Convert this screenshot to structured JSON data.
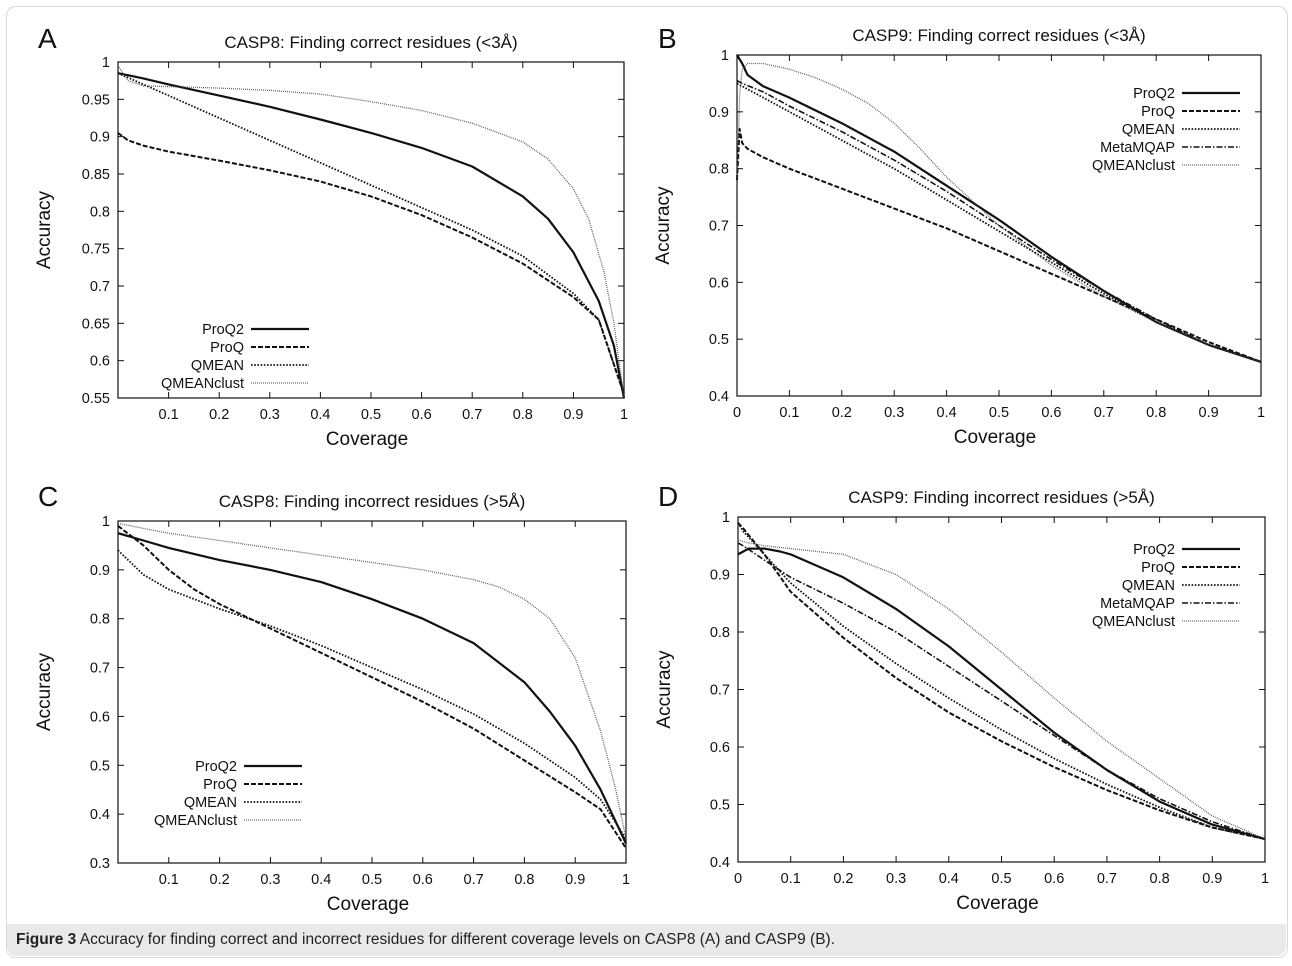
{
  "caption": {
    "label": "Figure 3",
    "text": "Accuracy for finding correct and incorrect residues for different coverage levels on CASP8 (A) and CASP9 (B)."
  },
  "chart_data": [
    {
      "panel": "A",
      "type": "line",
      "title": "CASP8: Finding correct residues (<3Å)",
      "xlabel": "Coverage",
      "ylabel": "Accuracy",
      "xlim": [
        0,
        1
      ],
      "ylim": [
        0.55,
        1
      ],
      "xticks": [
        "0.1",
        "0.2",
        "0.3",
        "0.4",
        "0.5",
        "0.6",
        "0.7",
        "0.8",
        "0.9",
        "1"
      ],
      "yticks": [
        "0.55",
        "0.6",
        "0.65",
        "0.7",
        "0.75",
        "0.8",
        "0.85",
        "0.9",
        "0.95",
        "1"
      ],
      "legend_position": "bottom-left",
      "series": [
        {
          "name": "ProQ2",
          "style": "solid",
          "x": [
            0,
            0.05,
            0.1,
            0.2,
            0.3,
            0.4,
            0.5,
            0.6,
            0.7,
            0.8,
            0.85,
            0.9,
            0.95,
            0.98,
            1
          ],
          "y": [
            0.985,
            0.978,
            0.97,
            0.955,
            0.94,
            0.923,
            0.905,
            0.885,
            0.86,
            0.82,
            0.79,
            0.745,
            0.68,
            0.62,
            0.55
          ]
        },
        {
          "name": "ProQ",
          "style": "dashed",
          "x": [
            0,
            0.02,
            0.05,
            0.1,
            0.2,
            0.3,
            0.4,
            0.5,
            0.6,
            0.7,
            0.8,
            0.9,
            0.95,
            1
          ],
          "y": [
            0.905,
            0.895,
            0.888,
            0.88,
            0.868,
            0.855,
            0.84,
            0.82,
            0.795,
            0.765,
            0.73,
            0.685,
            0.655,
            0.555
          ]
        },
        {
          "name": "QMEAN",
          "style": "dotted",
          "x": [
            0,
            0.05,
            0.1,
            0.2,
            0.3,
            0.4,
            0.5,
            0.6,
            0.7,
            0.8,
            0.9,
            0.95,
            1
          ],
          "y": [
            0.985,
            0.97,
            0.955,
            0.925,
            0.895,
            0.865,
            0.835,
            0.805,
            0.775,
            0.74,
            0.69,
            0.655,
            0.555
          ]
        },
        {
          "name": "QMEANclust",
          "style": "fine-dotted",
          "x": [
            0,
            0.02,
            0.05,
            0.1,
            0.2,
            0.3,
            0.4,
            0.5,
            0.6,
            0.7,
            0.8,
            0.85,
            0.9,
            0.93,
            0.96,
            0.98,
            1
          ],
          "y": [
            0.995,
            0.975,
            0.968,
            0.967,
            0.965,
            0.962,
            0.957,
            0.947,
            0.935,
            0.918,
            0.893,
            0.87,
            0.83,
            0.79,
            0.72,
            0.65,
            0.55
          ]
        }
      ]
    },
    {
      "panel": "B",
      "type": "line",
      "title": "CASP9: Finding correct residues (<3Å)",
      "xlabel": "Coverage",
      "ylabel": "Accuracy",
      "xlim": [
        0,
        1
      ],
      "ylim": [
        0.4,
        1
      ],
      "xticks": [
        "0",
        "0.1",
        "0.2",
        "0.3",
        "0.4",
        "0.5",
        "0.6",
        "0.7",
        "0.8",
        "0.9",
        "1"
      ],
      "yticks": [
        "0.4",
        "0.5",
        "0.6",
        "0.7",
        "0.8",
        "0.9",
        "1"
      ],
      "legend_position": "top-right",
      "series": [
        {
          "name": "ProQ2",
          "style": "solid",
          "x": [
            0,
            0.01,
            0.02,
            0.05,
            0.1,
            0.2,
            0.3,
            0.4,
            0.5,
            0.6,
            0.7,
            0.8,
            0.9,
            1
          ],
          "y": [
            1.0,
            0.985,
            0.965,
            0.945,
            0.925,
            0.88,
            0.83,
            0.77,
            0.71,
            0.645,
            0.585,
            0.53,
            0.49,
            0.46
          ]
        },
        {
          "name": "ProQ",
          "style": "dashed",
          "x": [
            0,
            0.005,
            0.01,
            0.02,
            0.05,
            0.1,
            0.2,
            0.3,
            0.4,
            0.5,
            0.6,
            0.7,
            0.8,
            0.9,
            1
          ],
          "y": [
            0.78,
            0.87,
            0.845,
            0.835,
            0.82,
            0.8,
            0.765,
            0.73,
            0.695,
            0.655,
            0.615,
            0.575,
            0.535,
            0.495,
            0.46
          ]
        },
        {
          "name": "QMEAN",
          "style": "dotted",
          "x": [
            0,
            0.01,
            0.05,
            0.1,
            0.2,
            0.3,
            0.4,
            0.5,
            0.6,
            0.7,
            0.8,
            0.9,
            1
          ],
          "y": [
            0.95,
            0.945,
            0.925,
            0.9,
            0.85,
            0.8,
            0.745,
            0.69,
            0.635,
            0.58,
            0.53,
            0.49,
            0.46
          ]
        },
        {
          "name": "MetaMQAP",
          "style": "dash-dot",
          "x": [
            0,
            0.01,
            0.05,
            0.1,
            0.2,
            0.3,
            0.4,
            0.5,
            0.6,
            0.7,
            0.8,
            0.9,
            1
          ],
          "y": [
            0.955,
            0.95,
            0.935,
            0.91,
            0.865,
            0.815,
            0.76,
            0.7,
            0.64,
            0.585,
            0.535,
            0.49,
            0.46
          ]
        },
        {
          "name": "QMEANclust",
          "style": "fine-dotted",
          "x": [
            0,
            0.005,
            0.01,
            0.02,
            0.05,
            0.1,
            0.15,
            0.2,
            0.25,
            0.3,
            0.35,
            0.4,
            0.5,
            0.6,
            0.7,
            0.8,
            0.9,
            1
          ],
          "y": [
            0.76,
            0.93,
            0.975,
            0.985,
            0.985,
            0.975,
            0.96,
            0.94,
            0.915,
            0.88,
            0.835,
            0.785,
            0.7,
            0.63,
            0.575,
            0.53,
            0.49,
            0.46
          ]
        }
      ]
    },
    {
      "panel": "C",
      "type": "line",
      "title": "CASP8: Finding incorrect residues (>5Å)",
      "xlabel": "Coverage",
      "ylabel": "Accuracy",
      "xlim": [
        0,
        1
      ],
      "ylim": [
        0.3,
        1
      ],
      "xticks": [
        "0.1",
        "0.2",
        "0.3",
        "0.4",
        "0.5",
        "0.6",
        "0.7",
        "0.8",
        "0.9",
        "1"
      ],
      "yticks": [
        "0.3",
        "0.4",
        "0.5",
        "0.6",
        "0.7",
        "0.8",
        "0.9",
        "1"
      ],
      "legend_position": "bottom-left",
      "series": [
        {
          "name": "ProQ2",
          "style": "solid",
          "x": [
            0,
            0.05,
            0.1,
            0.2,
            0.3,
            0.4,
            0.5,
            0.6,
            0.7,
            0.8,
            0.85,
            0.9,
            0.95,
            1
          ],
          "y": [
            0.975,
            0.96,
            0.945,
            0.92,
            0.9,
            0.875,
            0.84,
            0.8,
            0.75,
            0.67,
            0.61,
            0.54,
            0.45,
            0.34
          ]
        },
        {
          "name": "ProQ",
          "style": "dashed",
          "x": [
            0,
            0.05,
            0.1,
            0.15,
            0.2,
            0.3,
            0.4,
            0.5,
            0.6,
            0.7,
            0.8,
            0.9,
            0.95,
            1
          ],
          "y": [
            0.99,
            0.95,
            0.9,
            0.86,
            0.83,
            0.78,
            0.73,
            0.68,
            0.63,
            0.575,
            0.51,
            0.445,
            0.41,
            0.33
          ]
        },
        {
          "name": "QMEAN",
          "style": "dotted",
          "x": [
            0,
            0.05,
            0.1,
            0.2,
            0.3,
            0.4,
            0.5,
            0.6,
            0.7,
            0.8,
            0.9,
            0.95,
            1
          ],
          "y": [
            0.94,
            0.89,
            0.86,
            0.82,
            0.785,
            0.745,
            0.7,
            0.655,
            0.605,
            0.545,
            0.475,
            0.43,
            0.35
          ]
        },
        {
          "name": "QMEANclust",
          "style": "fine-dotted",
          "x": [
            0,
            0.1,
            0.2,
            0.3,
            0.4,
            0.5,
            0.6,
            0.7,
            0.75,
            0.8,
            0.85,
            0.9,
            0.95,
            0.98,
            1
          ],
          "y": [
            0.995,
            0.975,
            0.96,
            0.945,
            0.93,
            0.915,
            0.9,
            0.88,
            0.865,
            0.84,
            0.8,
            0.72,
            0.57,
            0.45,
            0.35
          ]
        }
      ]
    },
    {
      "panel": "D",
      "type": "line",
      "title": "CASP9: Finding incorrect residues (>5Å)",
      "xlabel": "Coverage",
      "ylabel": "Accuracy",
      "xlim": [
        0,
        1
      ],
      "ylim": [
        0.4,
        1
      ],
      "xticks": [
        "0",
        "0.1",
        "0.2",
        "0.3",
        "0.4",
        "0.5",
        "0.6",
        "0.7",
        "0.8",
        "0.9",
        "1"
      ],
      "yticks": [
        "0.4",
        "0.5",
        "0.6",
        "0.7",
        "0.8",
        "0.9",
        "1"
      ],
      "legend_position": "top-right",
      "series": [
        {
          "name": "ProQ2",
          "style": "solid",
          "x": [
            0,
            0.02,
            0.05,
            0.08,
            0.1,
            0.2,
            0.3,
            0.4,
            0.5,
            0.6,
            0.7,
            0.8,
            0.9,
            1
          ],
          "y": [
            0.935,
            0.945,
            0.945,
            0.94,
            0.935,
            0.895,
            0.84,
            0.775,
            0.7,
            0.625,
            0.56,
            0.505,
            0.465,
            0.44
          ]
        },
        {
          "name": "ProQ",
          "style": "dashed",
          "x": [
            0,
            0.01,
            0.05,
            0.1,
            0.2,
            0.3,
            0.4,
            0.5,
            0.6,
            0.7,
            0.8,
            0.9,
            1
          ],
          "y": [
            0.99,
            0.98,
            0.935,
            0.87,
            0.79,
            0.72,
            0.66,
            0.61,
            0.565,
            0.525,
            0.49,
            0.46,
            0.44
          ]
        },
        {
          "name": "QMEAN",
          "style": "dotted",
          "x": [
            0,
            0.01,
            0.05,
            0.1,
            0.2,
            0.3,
            0.4,
            0.5,
            0.6,
            0.7,
            0.8,
            0.9,
            1
          ],
          "y": [
            0.99,
            0.975,
            0.935,
            0.885,
            0.81,
            0.745,
            0.685,
            0.63,
            0.58,
            0.535,
            0.495,
            0.46,
            0.44
          ]
        },
        {
          "name": "MetaMQAP",
          "style": "dash-dot",
          "x": [
            0,
            0.01,
            0.05,
            0.1,
            0.2,
            0.3,
            0.4,
            0.5,
            0.6,
            0.7,
            0.8,
            0.9,
            1
          ],
          "y": [
            0.955,
            0.95,
            0.925,
            0.895,
            0.85,
            0.8,
            0.74,
            0.68,
            0.62,
            0.56,
            0.51,
            0.47,
            0.44
          ]
        },
        {
          "name": "QMEANclust",
          "style": "fine-dotted",
          "x": [
            0,
            0.02,
            0.05,
            0.1,
            0.2,
            0.3,
            0.4,
            0.5,
            0.6,
            0.7,
            0.8,
            0.9,
            1
          ],
          "y": [
            0.96,
            0.955,
            0.95,
            0.945,
            0.935,
            0.9,
            0.84,
            0.765,
            0.685,
            0.61,
            0.545,
            0.48,
            0.44
          ]
        }
      ]
    }
  ]
}
